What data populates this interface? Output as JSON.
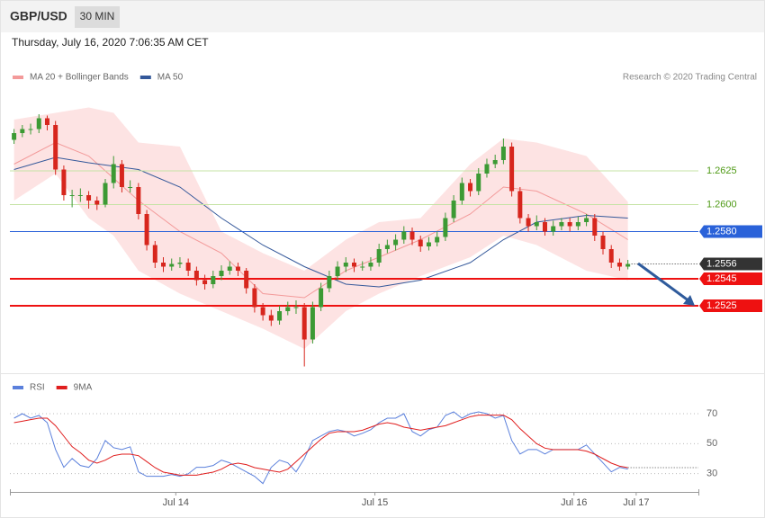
{
  "header": {
    "symbol": "GBP/USD",
    "timeframe": "30 MIN",
    "timestamp": "Thursday, July 16, 2020 7:06:35 AM CET"
  },
  "chart_data": [
    {
      "type": "candlestick",
      "credit": "Research © 2020 Trading Central",
      "xlim": [
        -0.5,
        82.5
      ],
      "ylim": [
        1.2475,
        1.2685
      ],
      "up_color": "#3c9a34",
      "down_color": "#d7261d",
      "candles": [
        [
          1.2648,
          1.2656,
          1.2645,
          1.2653
        ],
        [
          1.2653,
          1.2659,
          1.265,
          1.2656
        ],
        [
          1.2656,
          1.266,
          1.2652,
          1.2656
        ],
        [
          1.2656,
          1.2667,
          1.2653,
          1.2664
        ],
        [
          1.2664,
          1.2666,
          1.2655,
          1.2659
        ],
        [
          1.2659,
          1.2662,
          1.2622,
          1.2626
        ],
        [
          1.2626,
          1.2629,
          1.2603,
          1.2607
        ],
        [
          1.2607,
          1.2611,
          1.2598,
          1.2607
        ],
        [
          1.2607,
          1.2612,
          1.2602,
          1.2607
        ],
        [
          1.2607,
          1.261,
          1.2597,
          1.2603
        ],
        [
          1.2603,
          1.2606,
          1.2596,
          1.26
        ],
        [
          1.26,
          1.2619,
          1.2598,
          1.2616
        ],
        [
          1.2616,
          1.2636,
          1.2612,
          1.263
        ],
        [
          1.263,
          1.2633,
          1.2609,
          1.2613
        ],
        [
          1.2613,
          1.2618,
          1.2609,
          1.2613
        ],
        [
          1.2613,
          1.2616,
          1.2589,
          1.2593
        ],
        [
          1.2593,
          1.2596,
          1.2566,
          1.257
        ],
        [
          1.257,
          1.2573,
          1.2553,
          1.2557
        ],
        [
          1.2557,
          1.2561,
          1.255,
          1.2554
        ],
        [
          1.2554,
          1.256,
          1.2551,
          1.2556
        ],
        [
          1.2556,
          1.2561,
          1.2553,
          1.2557
        ],
        [
          1.2557,
          1.256,
          1.2547,
          1.2551
        ],
        [
          1.2551,
          1.2554,
          1.254,
          1.2544
        ],
        [
          1.2544,
          1.2548,
          1.2537,
          1.2541
        ],
        [
          1.2541,
          1.2551,
          1.2538,
          1.2547
        ],
        [
          1.2547,
          1.2555,
          1.2544,
          1.2551
        ],
        [
          1.2551,
          1.2558,
          1.2548,
          1.2554
        ],
        [
          1.2554,
          1.2557,
          1.2547,
          1.2551
        ],
        [
          1.2551,
          1.2553,
          1.2534,
          1.2538
        ],
        [
          1.2538,
          1.2541,
          1.252,
          1.2524
        ],
        [
          1.2524,
          1.2527,
          1.2514,
          1.2518
        ],
        [
          1.2518,
          1.2522,
          1.251,
          1.2514
        ],
        [
          1.2514,
          1.2525,
          1.2511,
          1.2521
        ],
        [
          1.2521,
          1.2528,
          1.2518,
          1.2524
        ],
        [
          1.2524,
          1.2529,
          1.2519,
          1.2524
        ],
        [
          1.2524,
          1.2527,
          1.248,
          1.25
        ],
        [
          1.25,
          1.2528,
          1.2497,
          1.2524
        ],
        [
          1.2524,
          1.2542,
          1.2521,
          1.2538
        ],
        [
          1.2538,
          1.2551,
          1.2535,
          1.2547
        ],
        [
          1.2547,
          1.2558,
          1.2544,
          1.2554
        ],
        [
          1.2554,
          1.2561,
          1.255,
          1.2557
        ],
        [
          1.2557,
          1.256,
          1.255,
          1.2554
        ],
        [
          1.2554,
          1.2558,
          1.2551,
          1.2554
        ],
        [
          1.2554,
          1.2561,
          1.2551,
          1.2557
        ],
        [
          1.2557,
          1.2571,
          1.2554,
          1.2567
        ],
        [
          1.2567,
          1.2574,
          1.2564,
          1.257
        ],
        [
          1.257,
          1.2578,
          1.2566,
          1.2574
        ],
        [
          1.2574,
          1.2584,
          1.2571,
          1.258
        ],
        [
          1.258,
          1.2583,
          1.257,
          1.2574
        ],
        [
          1.2574,
          1.2577,
          1.2565,
          1.2569
        ],
        [
          1.2569,
          1.2576,
          1.2566,
          1.2572
        ],
        [
          1.2572,
          1.258,
          1.2569,
          1.2576
        ],
        [
          1.2576,
          1.2594,
          1.2573,
          1.259
        ],
        [
          1.259,
          1.2607,
          1.2587,
          1.2603
        ],
        [
          1.2603,
          1.262,
          1.26,
          1.2616
        ],
        [
          1.2616,
          1.2619,
          1.2606,
          1.261
        ],
        [
          1.261,
          1.2627,
          1.2607,
          1.2623
        ],
        [
          1.2623,
          1.2634,
          1.262,
          1.263
        ],
        [
          1.263,
          1.2637,
          1.2627,
          1.2633
        ],
        [
          1.2633,
          1.2649,
          1.263,
          1.2643
        ],
        [
          1.2643,
          1.2646,
          1.2606,
          1.261
        ],
        [
          1.261,
          1.2613,
          1.2586,
          1.259
        ],
        [
          1.259,
          1.2593,
          1.258,
          1.2584
        ],
        [
          1.2584,
          1.2592,
          1.2581,
          1.2587
        ],
        [
          1.2587,
          1.259,
          1.2577,
          1.258
        ],
        [
          1.258,
          1.2588,
          1.2577,
          1.2584
        ],
        [
          1.2584,
          1.259,
          1.2581,
          1.2587
        ],
        [
          1.2587,
          1.259,
          1.258,
          1.2584
        ],
        [
          1.2584,
          1.2591,
          1.2581,
          1.2587
        ],
        [
          1.2587,
          1.2593,
          1.2584,
          1.259
        ],
        [
          1.259,
          1.2593,
          1.2573,
          1.2577
        ],
        [
          1.2577,
          1.258,
          1.2563,
          1.2567
        ],
        [
          1.2567,
          1.257,
          1.2553,
          1.2557
        ],
        [
          1.2557,
          1.256,
          1.2551,
          1.2554
        ],
        [
          1.2554,
          1.2559,
          1.2552,
          1.2556
        ]
      ],
      "bands": {
        "color": "#fde3e3",
        "x": [
          0,
          5,
          9,
          12,
          15,
          20,
          25,
          30,
          35,
          40,
          44,
          49,
          55,
          59,
          63,
          69,
          74
        ],
        "upper": [
          1.2663,
          1.2668,
          1.2672,
          1.2668,
          1.2646,
          1.2643,
          1.258,
          1.2564,
          1.2551,
          1.2574,
          1.2587,
          1.259,
          1.263,
          1.2649,
          1.2646,
          1.2636,
          1.2602
        ],
        "lower": [
          1.2603,
          1.2623,
          1.259,
          1.2577,
          1.2551,
          1.2534,
          1.2521,
          1.2508,
          1.2493,
          1.2521,
          1.2534,
          1.2547,
          1.2561,
          1.2577,
          1.257,
          1.2551,
          1.2544
        ]
      },
      "series": [
        {
          "name": "MA 20 + Bollinger Bands",
          "color": "#f39a9a",
          "x": [
            0,
            5,
            9,
            15,
            20,
            25,
            30,
            35,
            40,
            44,
            49,
            55,
            59,
            63,
            69,
            74
          ],
          "values": [
            1.263,
            1.2646,
            1.2636,
            1.2603,
            1.258,
            1.2564,
            1.2534,
            1.2531,
            1.2551,
            1.2561,
            1.2574,
            1.2593,
            1.2613,
            1.261,
            1.2593,
            1.2574
          ]
        },
        {
          "name": "MA 50",
          "color": "#34589a",
          "x": [
            0,
            5,
            9,
            15,
            20,
            25,
            30,
            35,
            40,
            44,
            49,
            55,
            59,
            63,
            69,
            74
          ],
          "values": [
            1.2626,
            1.2635,
            1.2631,
            1.2626,
            1.2613,
            1.259,
            1.257,
            1.2554,
            1.2541,
            1.2539,
            1.2544,
            1.2557,
            1.2574,
            1.2587,
            1.2592,
            1.259
          ]
        }
      ],
      "levels": [
        {
          "value": 1.2625,
          "label": "1.2625",
          "color": "#c5e3a5",
          "text_color": "#4f9a16",
          "box": false,
          "width": 1,
          "dotted": false
        },
        {
          "value": 1.26,
          "label": "1.2600",
          "color": "#c5e3a5",
          "text_color": "#4f9a16",
          "box": false,
          "width": 1,
          "dotted": false
        },
        {
          "value": 1.258,
          "label": "1.2580",
          "color": "#2a62d9",
          "text_color": "#ffffff",
          "box": true,
          "width": 1,
          "dotted": false
        },
        {
          "value": 1.2556,
          "label": "1.2556",
          "color": "#333333",
          "text_color": "#ffffff",
          "box": true,
          "width": 1,
          "dotted": true
        },
        {
          "value": 1.2545,
          "label": "1.2545",
          "color": "#ee1111",
          "text_color": "#ffffff",
          "box": true,
          "width": 2,
          "dotted": false
        },
        {
          "value": 1.2525,
          "label": "1.2525",
          "color": "#ee1111",
          "text_color": "#ffffff",
          "box": true,
          "width": 2,
          "dotted": false
        }
      ]
    },
    {
      "type": "line",
      "xlim": [
        -0.5,
        82.5
      ],
      "ylim": [
        19,
        88
      ],
      "yticks": [
        30,
        50,
        70
      ],
      "xticks": [
        {
          "value": 19.5,
          "label": "Jul 14"
        },
        {
          "value": 43.5,
          "label": "Jul 15"
        },
        {
          "value": 67.5,
          "label": "Jul 16"
        },
        {
          "value": 75,
          "label": "Jul 17"
        }
      ],
      "series": [
        {
          "name": "RSI",
          "color": "#5b80dc",
          "values": [
            67,
            70,
            67,
            68.8,
            64,
            46.1,
            34.2,
            40.1,
            35.4,
            34.2,
            40.1,
            52.1,
            47.3,
            46.1,
            47.9,
            31.2,
            28.2,
            28.2,
            28.2,
            29.4,
            28.2,
            29.9,
            34.2,
            34.2,
            35.4,
            39,
            37.2,
            34.2,
            31.2,
            28.2,
            23.4,
            34.2,
            39,
            37.2,
            31.2,
            40.1,
            52.1,
            55.1,
            58.1,
            59.3,
            58.1,
            55.1,
            56.9,
            59.3,
            64,
            67,
            67,
            70,
            58.1,
            55.1,
            59.3,
            61,
            68.8,
            71.2,
            67,
            70,
            71.2,
            70,
            67,
            68.8,
            52.1,
            43.1,
            46.1,
            46.1,
            43.1,
            46.1,
            46.1,
            46.1,
            46.1,
            49.1,
            43.1,
            37.2,
            31.2,
            34.2,
            33
          ]
        },
        {
          "name": "9MA",
          "color": "#e01e1e",
          "values": [
            64,
            65,
            66,
            67,
            67,
            62,
            55,
            48,
            44,
            39,
            37,
            39,
            42,
            43,
            43,
            42,
            38,
            34,
            31,
            30,
            29,
            29,
            29,
            30,
            31,
            33,
            36,
            37,
            36,
            34,
            33,
            32,
            31,
            33,
            38,
            43,
            48,
            53,
            57,
            58,
            58,
            58,
            59,
            61,
            63,
            64,
            63,
            61,
            60,
            59,
            60,
            61,
            62,
            64,
            66,
            68,
            69,
            69,
            69,
            69,
            66,
            60,
            55,
            50,
            47,
            46,
            46,
            46,
            46,
            45,
            43,
            40,
            37,
            35,
            34
          ]
        }
      ]
    }
  ]
}
